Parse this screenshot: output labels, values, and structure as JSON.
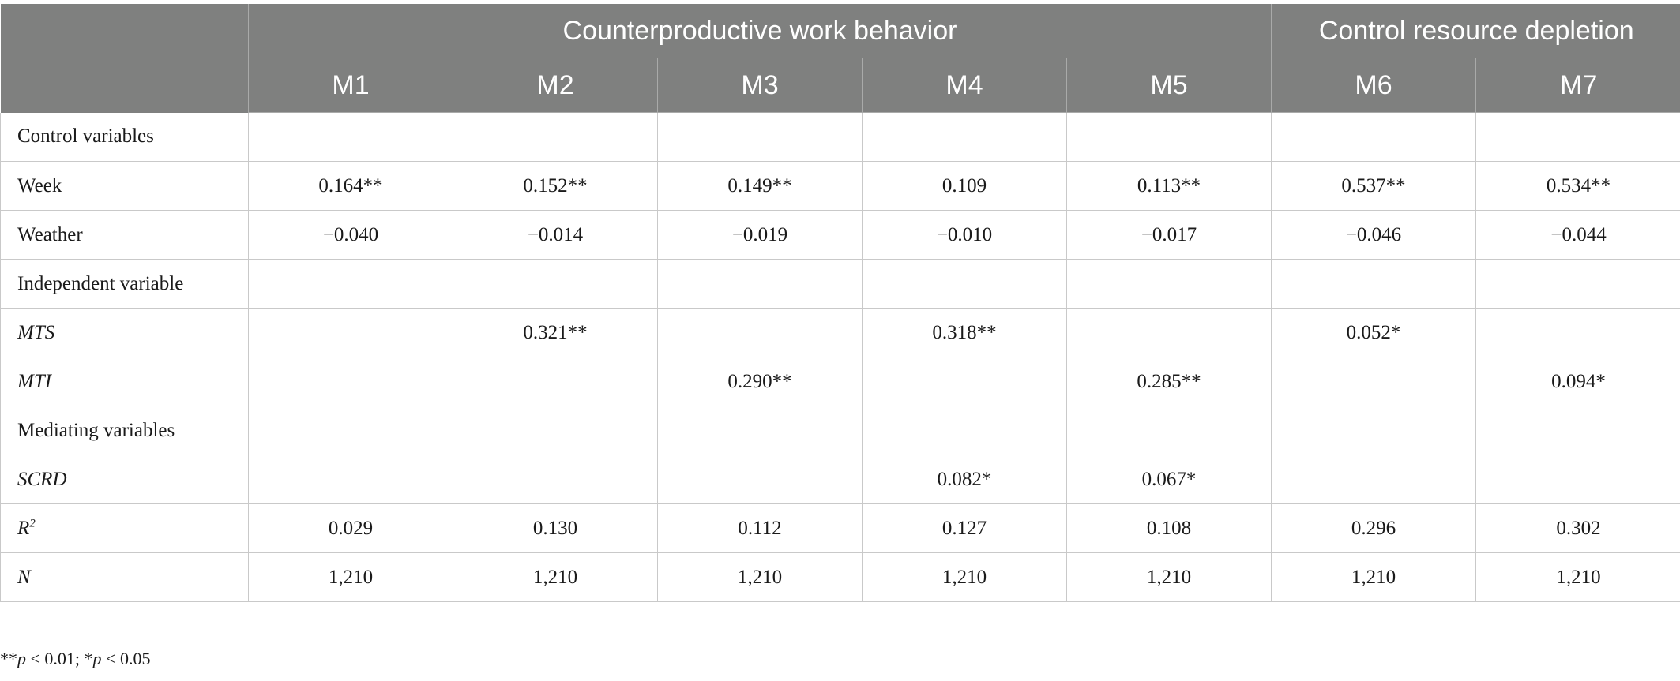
{
  "header": {
    "group_cwb": "Counterproductive work behavior",
    "group_crd": "Control resource depletion",
    "models": [
      "M1",
      "M2",
      "M3",
      "M4",
      "M5",
      "M6",
      "M7"
    ]
  },
  "rows": [
    {
      "label": "Control variables",
      "italic": false,
      "cells": [
        "",
        "",
        "",
        "",
        "",
        "",
        ""
      ]
    },
    {
      "label": "Week",
      "italic": false,
      "cells": [
        "0.164**",
        "0.152**",
        "0.149**",
        "0.109",
        "0.113**",
        "0.537**",
        "0.534**"
      ]
    },
    {
      "label": "Weather",
      "italic": false,
      "cells": [
        "−0.040",
        "−0.014",
        "−0.019",
        "−0.010",
        "−0.017",
        "−0.046",
        "−0.044"
      ]
    },
    {
      "label": "Independent variable",
      "italic": false,
      "cells": [
        "",
        "",
        "",
        "",
        "",
        "",
        ""
      ]
    },
    {
      "label": "MTS",
      "italic": true,
      "cells": [
        "",
        "0.321**",
        "",
        "0.318**",
        "",
        "0.052*",
        ""
      ]
    },
    {
      "label": "MTI",
      "italic": true,
      "cells": [
        "",
        "",
        "0.290**",
        "",
        "0.285**",
        "",
        "0.094*"
      ]
    },
    {
      "label": "Mediating variables",
      "italic": false,
      "cells": [
        "",
        "",
        "",
        "",
        "",
        "",
        ""
      ]
    },
    {
      "label": "SCRD",
      "italic": true,
      "cells": [
        "",
        "",
        "",
        "0.082*",
        "0.067*",
        "",
        ""
      ]
    },
    {
      "label": "R",
      "label_sup": "2",
      "italic": true,
      "cells": [
        "0.029",
        "0.130",
        "0.112",
        "0.127",
        "0.108",
        "0.296",
        "0.302"
      ]
    },
    {
      "label": "N",
      "italic": true,
      "cells": [
        "1,210",
        "1,210",
        "1,210",
        "1,210",
        "1,210",
        "1,210",
        "1,210"
      ]
    }
  ],
  "footnote": {
    "stars2": "**",
    "p1": "p",
    "cond1": " < 0.01; ",
    "stars1": "*",
    "p2": "p",
    "cond2": " < 0.05"
  }
}
